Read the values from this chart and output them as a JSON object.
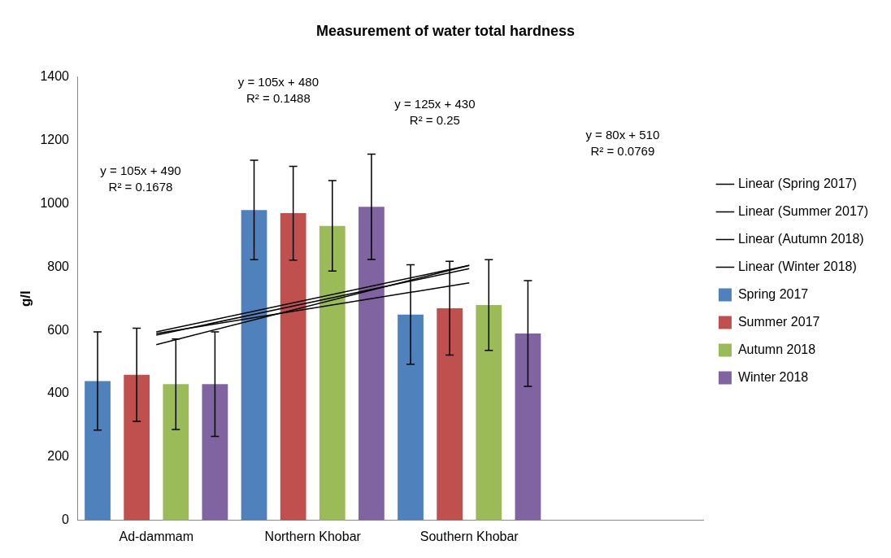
{
  "chart_data": {
    "type": "bar",
    "title": "Measurement of water total hardness",
    "ylabel": "g/l",
    "categories": [
      "Ad-dammam",
      "Northern Khobar",
      "Southern Khobar",
      null
    ],
    "series": [
      {
        "name": "Spring 2017",
        "color": "#4f81bd",
        "values": [
          440,
          980,
          650,
          null
        ],
        "errors": [
          155,
          157,
          157,
          null
        ]
      },
      {
        "name": "Summer 2017",
        "color": "#c0504d",
        "values": [
          460,
          970,
          670,
          null
        ],
        "errors": [
          147,
          148,
          148,
          null
        ]
      },
      {
        "name": "Autumn 2018",
        "color": "#9bbb59",
        "values": [
          430,
          930,
          680,
          null
        ],
        "errors": [
          143,
          143,
          143,
          null
        ]
      },
      {
        "name": "Winter 2018",
        "color": "#8064a2",
        "values": [
          430,
          990,
          590,
          null
        ],
        "errors": [
          165,
          166,
          167,
          null
        ]
      },
      {
        "name": "Linear (Spring 2017)",
        "type": "line",
        "color": "#000000",
        "x": [
          "Ad-dammam",
          "Southern Khobar"
        ],
        "values": [
          595,
          805
        ]
      },
      {
        "name": "Linear (Summer 2017)",
        "type": "line",
        "color": "#000000",
        "x": [
          "Ad-dammam",
          "Southern Khobar"
        ],
        "values": [
          585,
          795
        ]
      },
      {
        "name": "Linear (Autumn 2018)",
        "type": "line",
        "color": "#000000",
        "x": [
          "Ad-dammam",
          "Southern Khobar"
        ],
        "values": [
          555,
          805
        ]
      },
      {
        "name": "Linear (Winter 2018)",
        "type": "line",
        "color": "#000000",
        "x": [
          "Ad-dammam",
          "Southern Khobar"
        ],
        "values": [
          590,
          750
        ]
      }
    ],
    "annotations": [
      "y = 105x + 490\nR² = 0.1678",
      "y = 105x + 480\nR² = 0.1488",
      "y = 125x + 430\nR² = 0.25",
      "y = 80x + 510\nR² = 0.0769"
    ],
    "ylim": [
      0,
      1400
    ],
    "yticks": [
      0,
      200,
      400,
      600,
      800,
      1000,
      1200,
      1400
    ],
    "grid": false,
    "legend": "right",
    "marker": "none"
  }
}
